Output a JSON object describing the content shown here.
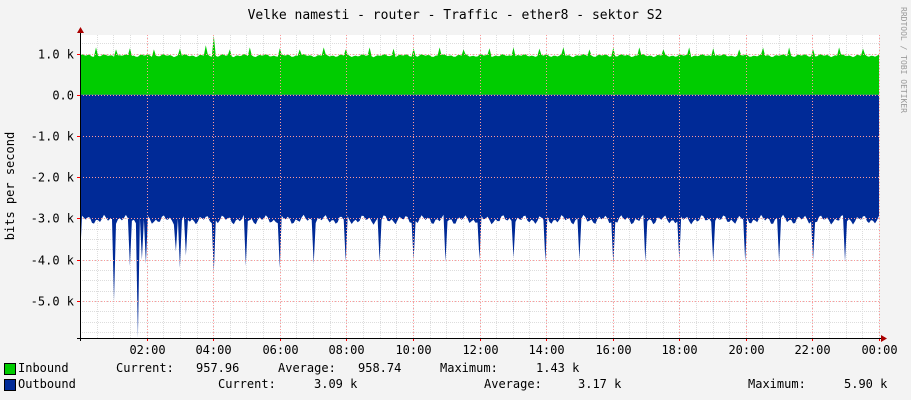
{
  "chart_data": {
    "type": "area",
    "title": "Velke namesti - router - Traffic - ether8 - sektor S2",
    "ylabel": "bits per second",
    "side_label": "RRDTOOL / TOBI OETIKER",
    "ylim": [
      -5900,
      1450
    ],
    "yticks": [
      {
        "value": 1000,
        "label": "1.0 k"
      },
      {
        "value": 0,
        "label": "0.0"
      },
      {
        "value": -1000,
        "label": "-1.0 k"
      },
      {
        "value": -2000,
        "label": "-2.0 k"
      },
      {
        "value": -3000,
        "label": "-3.0 k"
      },
      {
        "value": -4000,
        "label": "-4.0 k"
      },
      {
        "value": -5000,
        "label": "-5.0 k"
      }
    ],
    "xlim": [
      0,
      24
    ],
    "xticks": [
      {
        "value": 2,
        "label": "02:00"
      },
      {
        "value": 4,
        "label": "04:00"
      },
      {
        "value": 6,
        "label": "06:00"
      },
      {
        "value": 8,
        "label": "08:00"
      },
      {
        "value": 10,
        "label": "10:00"
      },
      {
        "value": 12,
        "label": "12:00"
      },
      {
        "value": 14,
        "label": "14:00"
      },
      {
        "value": 16,
        "label": "16:00"
      },
      {
        "value": 18,
        "label": "18:00"
      },
      {
        "value": 20,
        "label": "20:00"
      },
      {
        "value": 22,
        "label": "22:00"
      },
      {
        "value": 24,
        "label": "00:00"
      }
    ],
    "series": [
      {
        "name": "Inbound",
        "color": "#00cc00",
        "baseline": 950,
        "spikes": [
          [
            0.5,
            1150
          ],
          [
            1.1,
            1100
          ],
          [
            1.5,
            1130
          ],
          [
            2.2,
            1100
          ],
          [
            3.0,
            1120
          ],
          [
            3.8,
            1200
          ],
          [
            4.0,
            1430
          ],
          [
            4.5,
            1100
          ],
          [
            5.1,
            1150
          ],
          [
            6.0,
            1130
          ],
          [
            6.6,
            1100
          ],
          [
            7.3,
            1150
          ],
          [
            8.0,
            1100
          ],
          [
            8.7,
            1150
          ],
          [
            9.4,
            1120
          ],
          [
            10.0,
            1130
          ],
          [
            10.8,
            1150
          ],
          [
            11.5,
            1100
          ],
          [
            12.3,
            1130
          ],
          [
            13.0,
            1150
          ],
          [
            13.8,
            1120
          ],
          [
            14.5,
            1150
          ],
          [
            15.3,
            1100
          ],
          [
            16.0,
            1140
          ],
          [
            16.8,
            1150
          ],
          [
            17.5,
            1100
          ],
          [
            18.3,
            1150
          ],
          [
            19.0,
            1130
          ],
          [
            19.8,
            1100
          ],
          [
            20.5,
            1140
          ],
          [
            21.3,
            1150
          ],
          [
            22.0,
            1100
          ],
          [
            22.8,
            1150
          ],
          [
            23.5,
            1120
          ]
        ]
      },
      {
        "name": "Outbound",
        "color": "#002a97",
        "baseline": -3030,
        "spikes": [
          [
            0.0,
            -4000
          ],
          [
            1.0,
            -5000
          ],
          [
            1.5,
            -4150
          ],
          [
            1.75,
            -5900
          ],
          [
            1.85,
            -4000
          ],
          [
            1.95,
            -4100
          ],
          [
            2.9,
            -3800
          ],
          [
            3.0,
            -4200
          ],
          [
            3.15,
            -3900
          ],
          [
            4.0,
            -4300
          ],
          [
            5.0,
            -4150
          ],
          [
            6.0,
            -4200
          ],
          [
            7.0,
            -4100
          ],
          [
            8.0,
            -4050
          ],
          [
            9.0,
            -4050
          ],
          [
            10.0,
            -4000
          ],
          [
            11.0,
            -4050
          ],
          [
            12.0,
            -4000
          ],
          [
            13.0,
            -3950
          ],
          [
            14.0,
            -4050
          ],
          [
            15.0,
            -4000
          ],
          [
            16.0,
            -4100
          ],
          [
            17.0,
            -4050
          ],
          [
            18.0,
            -4000
          ],
          [
            19.0,
            -4050
          ],
          [
            20.0,
            -4050
          ],
          [
            21.0,
            -4050
          ],
          [
            22.0,
            -4000
          ],
          [
            23.0,
            -4050
          ]
        ]
      }
    ],
    "legend": {
      "inbound": {
        "name": "Inbound",
        "current_label": "Current:",
        "current": "957.96",
        "average_label": "Average:",
        "average": "958.74",
        "maximum_label": "Maximum:",
        "maximum": "1.43 k"
      },
      "outbound": {
        "name": "Outbound",
        "current_label": "Current:",
        "current": "3.09 k",
        "average_label": "Average:",
        "average": "3.17 k",
        "maximum_label": "Maximum:",
        "maximum": "5.90 k"
      }
    }
  }
}
